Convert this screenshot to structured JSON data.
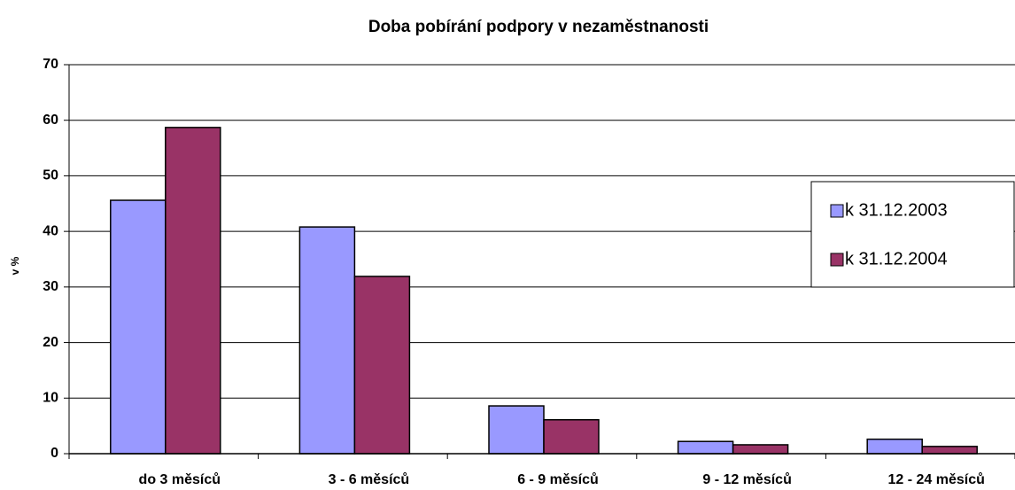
{
  "chart_data": {
    "type": "bar",
    "title": "Doba pobírání podpory v nezaměstnanosti",
    "y_label": "v %",
    "categories": [
      "do 3 měsíců",
      "3 - 6 měsíců",
      "6 - 9 měsíců",
      "9 - 12 měsíců",
      "12 - 24 měsíců"
    ],
    "series": [
      {
        "name": "k 31.12.2003",
        "color": "#9999ff",
        "values": [
          45.6,
          40.8,
          8.6,
          2.2,
          2.6
        ]
      },
      {
        "name": "k 31.12.2004",
        "color": "#993366",
        "values": [
          58.7,
          31.9,
          6.1,
          1.6,
          1.3
        ]
      }
    ],
    "ylim": [
      0,
      70
    ],
    "yticks": [
      0,
      10,
      20,
      30,
      40,
      50,
      60,
      70
    ],
    "grid": true,
    "legend": "right"
  }
}
